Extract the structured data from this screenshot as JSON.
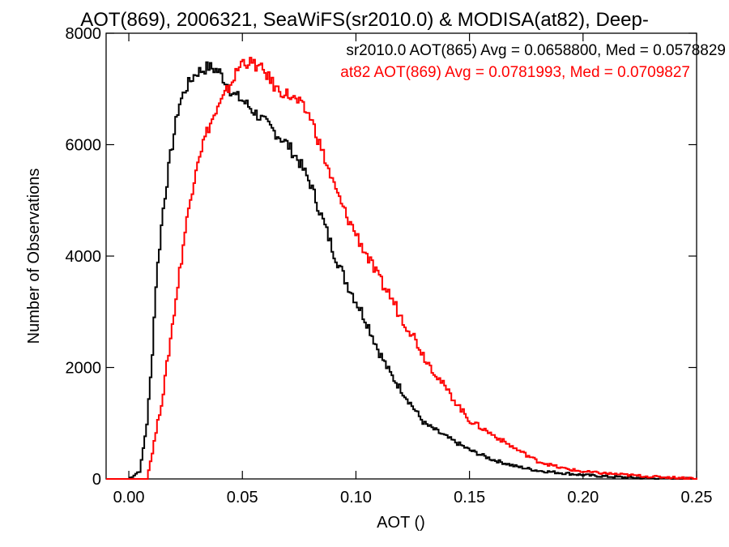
{
  "chart_data": {
    "type": "line",
    "title": "AOT(869), 2006321, SeaWiFS(sr2010.0) & MODISA(at82), Deep-",
    "xlabel": "AOT ()",
    "ylabel": "Number of Observations",
    "xlim": [
      -0.01,
      0.25
    ],
    "ylim": [
      0,
      8000
    ],
    "x_ticks": [
      0.0,
      0.05,
      0.1,
      0.15,
      0.2,
      0.25
    ],
    "x_tick_labels": [
      "0.00",
      "0.05",
      "0.10",
      "0.15",
      "0.20",
      "0.25"
    ],
    "y_ticks": [
      0,
      2000,
      4000,
      6000,
      8000
    ],
    "y_tick_labels": [
      "0",
      "2000",
      "4000",
      "6000",
      "8000"
    ],
    "grid": false,
    "legend_position": "top-right",
    "series": [
      {
        "name": "sr2010.0 AOT(865) Avg = 0.0658800, Med = 0.0578829",
        "color": "#000000",
        "x": [
          -0.01,
          0.0,
          0.005,
          0.008,
          0.01,
          0.012,
          0.015,
          0.018,
          0.02,
          0.022,
          0.025,
          0.028,
          0.03,
          0.033,
          0.035,
          0.038,
          0.04,
          0.043,
          0.046,
          0.05,
          0.055,
          0.06,
          0.065,
          0.07,
          0.075,
          0.08,
          0.085,
          0.09,
          0.095,
          0.1,
          0.105,
          0.11,
          0.115,
          0.12,
          0.125,
          0.13,
          0.14,
          0.15,
          0.16,
          0.17,
          0.18,
          0.19,
          0.2,
          0.21,
          0.22,
          0.23,
          0.24,
          0.25
        ],
        "y": [
          0,
          0,
          150,
          1000,
          2000,
          3500,
          4800,
          5700,
          6200,
          6700,
          7000,
          7200,
          7300,
          7350,
          7400,
          7350,
          7300,
          7100,
          6900,
          6800,
          6600,
          6400,
          6200,
          6000,
          5700,
          5300,
          4700,
          4100,
          3600,
          3200,
          2800,
          2300,
          1900,
          1600,
          1300,
          1000,
          750,
          520,
          350,
          230,
          150,
          110,
          70,
          45,
          25,
          15,
          8,
          0
        ]
      },
      {
        "name": "at82 AOT(869) Avg = 0.0781993, Med = 0.0709827",
        "color": "#ff0000",
        "x": [
          -0.01,
          0.0,
          0.008,
          0.01,
          0.015,
          0.02,
          0.025,
          0.03,
          0.035,
          0.04,
          0.045,
          0.05,
          0.055,
          0.06,
          0.065,
          0.07,
          0.075,
          0.08,
          0.085,
          0.09,
          0.095,
          0.1,
          0.105,
          0.11,
          0.115,
          0.12,
          0.125,
          0.13,
          0.135,
          0.14,
          0.15,
          0.16,
          0.17,
          0.18,
          0.19,
          0.2,
          0.21,
          0.22,
          0.23,
          0.24,
          0.25
        ],
        "y": [
          0,
          0,
          0,
          400,
          1500,
          3000,
          4500,
          5700,
          6300,
          6700,
          7100,
          7500,
          7450,
          7300,
          7000,
          6900,
          6750,
          6500,
          5900,
          5300,
          4800,
          4400,
          4000,
          3600,
          3300,
          2900,
          2600,
          2200,
          1900,
          1600,
          1050,
          800,
          550,
          320,
          200,
          130,
          100,
          70,
          40,
          25,
          10
        ]
      }
    ]
  }
}
